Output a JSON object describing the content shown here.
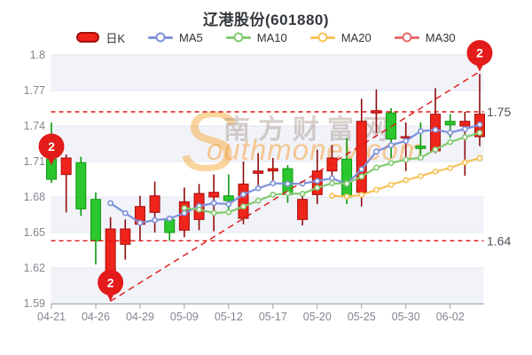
{
  "title": "辽港股份(601880)",
  "watermark": {
    "brand_initial": "S",
    "brand_rest": "outhmoney.com",
    "brand_cn": "南方财富网",
    "initial_color": "rgba(247,172,62,0.50)",
    "text_color": "rgba(246,163,64,0.55)",
    "cn_color": "rgba(158,138,128,0.40)"
  },
  "legend": [
    {
      "label": "日K",
      "type": "candle"
    },
    {
      "label": "MA5",
      "type": "line",
      "series": 0
    },
    {
      "label": "MA10",
      "type": "line",
      "series": 1
    },
    {
      "label": "MA20",
      "type": "line",
      "series": 2
    },
    {
      "label": "MA30",
      "type": "line",
      "series": 3
    }
  ],
  "chart_data": {
    "type": "candlestick",
    "title": "辽港股份(601880)",
    "grid": true,
    "y_axis": {
      "min": 1.59,
      "max": 1.8,
      "step": 0.03,
      "labels": [
        {
          "value": 1.8,
          "label": "1.8"
        },
        {
          "value": 1.77,
          "label": "1.77"
        },
        {
          "value": 1.74,
          "label": "1.74"
        },
        {
          "value": 1.71,
          "label": "1.71"
        },
        {
          "value": 1.68,
          "label": "1.68"
        },
        {
          "value": 1.65,
          "label": "1.65"
        },
        {
          "value": 1.62,
          "label": "1.62"
        },
        {
          "value": 1.59,
          "label": "1.59"
        }
      ]
    },
    "x_labels": [
      {
        "index": 0,
        "label": "04-21"
      },
      {
        "index": 3,
        "label": "04-26"
      },
      {
        "index": 6,
        "label": "04-29"
      },
      {
        "index": 9,
        "label": "05-09"
      },
      {
        "index": 12,
        "label": "05-12"
      },
      {
        "index": 15,
        "label": "05-17"
      },
      {
        "index": 18,
        "label": "05-20"
      },
      {
        "index": 21,
        "label": "05-25"
      },
      {
        "index": 24,
        "label": "05-30"
      },
      {
        "index": 27,
        "label": "06-02"
      }
    ],
    "candles": [
      {
        "open": 1.712,
        "close": 1.695,
        "high": 1.743,
        "low": 1.692
      },
      {
        "open": 1.699,
        "close": 1.713,
        "high": 1.716,
        "low": 1.667
      },
      {
        "open": 1.709,
        "close": 1.67,
        "high": 1.714,
        "low": 1.664
      },
      {
        "open": 1.678,
        "close": 1.643,
        "high": 1.684,
        "low": 1.623
      },
      {
        "open": 1.603,
        "close": 1.653,
        "high": 1.663,
        "low": 1.592
      },
      {
        "open": 1.64,
        "close": 1.653,
        "high": 1.661,
        "low": 1.627
      },
      {
        "open": 1.657,
        "close": 1.672,
        "high": 1.681,
        "low": 1.643
      },
      {
        "open": 1.667,
        "close": 1.681,
        "high": 1.693,
        "low": 1.65
      },
      {
        "open": 1.661,
        "close": 1.65,
        "high": 1.663,
        "low": 1.643
      },
      {
        "open": 1.652,
        "close": 1.676,
        "high": 1.688,
        "low": 1.646
      },
      {
        "open": 1.661,
        "close": 1.683,
        "high": 1.691,
        "low": 1.652
      },
      {
        "open": 1.68,
        "close": 1.684,
        "high": 1.699,
        "low": 1.651
      },
      {
        "open": 1.681,
        "close": 1.677,
        "high": 1.699,
        "low": 1.665
      },
      {
        "open": 1.662,
        "close": 1.691,
        "high": 1.71,
        "low": 1.657
      },
      {
        "open": 1.7,
        "close": 1.702,
        "high": 1.717,
        "low": 1.69
      },
      {
        "open": 1.702,
        "close": 1.704,
        "high": 1.713,
        "low": 1.694
      },
      {
        "open": 1.704,
        "close": 1.682,
        "high": 1.707,
        "low": 1.675
      },
      {
        "open": 1.661,
        "close": 1.678,
        "high": 1.681,
        "low": 1.656
      },
      {
        "open": 1.682,
        "close": 1.702,
        "high": 1.72,
        "low": 1.674
      },
      {
        "open": 1.702,
        "close": 1.713,
        "high": 1.724,
        "low": 1.697
      },
      {
        "open": 1.712,
        "close": 1.68,
        "high": 1.73,
        "low": 1.674
      },
      {
        "open": 1.684,
        "close": 1.744,
        "high": 1.763,
        "low": 1.672
      },
      {
        "open": 1.751,
        "close": 1.753,
        "high": 1.771,
        "low": 1.734
      },
      {
        "open": 1.751,
        "close": 1.729,
        "high": 1.755,
        "low": 1.713
      },
      {
        "open": 1.73,
        "close": 1.731,
        "high": 1.743,
        "low": 1.702
      },
      {
        "open": 1.723,
        "close": 1.721,
        "high": 1.743,
        "low": 1.715
      },
      {
        "open": 1.719,
        "close": 1.75,
        "high": 1.772,
        "low": 1.717
      },
      {
        "open": 1.744,
        "close": 1.741,
        "high": 1.75,
        "low": 1.73
      },
      {
        "open": 1.74,
        "close": 1.744,
        "high": 1.752,
        "low": 1.698
      },
      {
        "open": 1.731,
        "close": 1.75,
        "high": 1.784,
        "low": 1.723
      }
    ],
    "candle_style": {
      "up_fill": "#ef241a",
      "up_border": "#a50d0d",
      "up_wick": "#8e0b0b",
      "down_fill": "#2cc62e",
      "down_border": "#0c9a10",
      "down_wick": "#0c9a10"
    },
    "ma_series": [
      {
        "label": "MA5",
        "period": 5,
        "color": "#7d90da",
        "plotted": true
      },
      {
        "label": "MA10",
        "period": 10,
        "color": "#82ca6f",
        "plotted": true
      },
      {
        "label": "MA20",
        "period": 20,
        "color": "#f7c257",
        "plotted": true
      },
      {
        "label": "MA30",
        "period": 30,
        "color": "#ea6a6a",
        "plotted": false
      }
    ],
    "reference_lines": [
      {
        "value": 1.752,
        "label": "1.75"
      },
      {
        "value": 1.643,
        "label": "1.64"
      }
    ],
    "trend_line": {
      "from_index": 4,
      "from_value": 1.592,
      "to_index": 29,
      "to_value": 1.786
    },
    "markers": [
      {
        "index": 0,
        "value": 1.707,
        "label": "2"
      },
      {
        "index": 4,
        "value": 1.592,
        "label": "2"
      },
      {
        "index": 29,
        "value": 1.786,
        "label": "2"
      }
    ],
    "marker_color": "#e31b1b",
    "line_color": "#e21414",
    "band_color": "#f1f3f9",
    "grid_color": "#e4e7f0",
    "axis_color": "#9aa0a8",
    "tick_text_color": "#82878f",
    "ref_label_color": "#4d525b"
  }
}
